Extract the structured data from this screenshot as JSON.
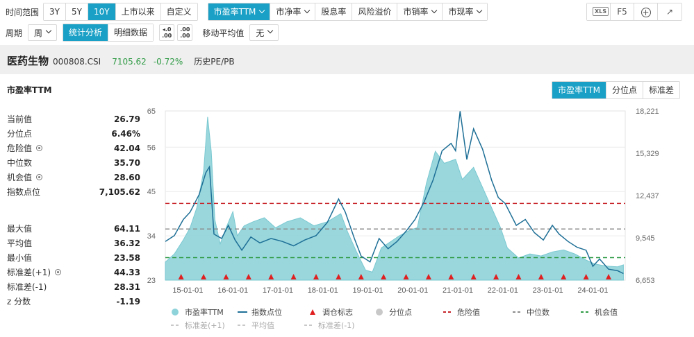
{
  "toolbar": {
    "time_range_label": "时间范围",
    "time_ranges": [
      "3Y",
      "5Y",
      "10Y",
      "上市以来",
      "自定义"
    ],
    "time_range_active": "10Y",
    "metrics": [
      "市盈率TTM",
      "市净率",
      "股息率",
      "风险溢价",
      "市销率",
      "市现率"
    ],
    "metric_active": "市盈率TTM",
    "right_buttons": [
      "XLS",
      "F5",
      "+",
      "↗"
    ]
  },
  "row2": {
    "period_label": "周期",
    "period_value": "周",
    "tabs": [
      "统计分析",
      "明细数据"
    ],
    "tab_active": "统计分析",
    "decimal_icons": [
      ".00",
      ".00"
    ],
    "ma_label": "移动平均值",
    "ma_value": "无"
  },
  "index_bar": {
    "name": "医药生物",
    "code": "000808.CSI",
    "price": "7105.62",
    "change": "-0.72%",
    "hist_label": "历史PE/PB",
    "change_color": "#2e9a44"
  },
  "panel": {
    "title": "市盈率TTM",
    "view_tabs": [
      "市盈率TTM",
      "分位点",
      "标准差"
    ],
    "view_active": "市盈率TTM"
  },
  "stats_top": [
    {
      "label": "当前值",
      "value": "26.79",
      "gear": false
    },
    {
      "label": "分位点",
      "value": "6.46%",
      "gear": false
    },
    {
      "label": "危险值",
      "value": "42.04",
      "gear": true
    },
    {
      "label": "中位数",
      "value": "35.70",
      "gear": false
    },
    {
      "label": "机会值",
      "value": "28.60",
      "gear": true
    },
    {
      "label": "指数点位",
      "value": "7,105.62",
      "gear": false
    }
  ],
  "stats_bottom": [
    {
      "label": "最大值",
      "value": "64.11",
      "gear": false
    },
    {
      "label": "平均值",
      "value": "36.32",
      "gear": false
    },
    {
      "label": "最小值",
      "value": "23.58",
      "gear": false
    },
    {
      "label": "标准差(+1)",
      "value": "44.33",
      "gear": true
    },
    {
      "label": "标准差(-1)",
      "value": "28.31",
      "gear": false
    },
    {
      "label": "z 分数",
      "value": "-1.19",
      "gear": false
    }
  ],
  "legend": {
    "row1": [
      "市盈率TTM",
      "指数点位",
      "调仓标志",
      "分位点",
      "危险值",
      "中位数",
      "机会值"
    ],
    "row2": [
      "标准差(+1)",
      "平均值",
      "标准差(-1)"
    ]
  },
  "colors": {
    "accent": "#1aa0c6",
    "area": "#8fd3da",
    "area_line": "#6cc3cc",
    "index_line": "#1e6f96",
    "danger": "#c8262b",
    "median": "#8c8c8c",
    "opportunity": "#2e9a44",
    "marker": "#e02020"
  },
  "chart_data": {
    "type": "line",
    "x_ticks": [
      "15-01-01",
      "16-01-01",
      "17-01-01",
      "18-01-01",
      "19-01-01",
      "20-01-01",
      "21-01-01",
      "22-01-01",
      "23-01-01",
      "24-01-01"
    ],
    "y_left_ticks": [
      "65",
      "56",
      "45",
      "34",
      "23"
    ],
    "y_left_lim": [
      23,
      65
    ],
    "y_right_ticks": [
      "18,221",
      "15,329",
      "12,437",
      "9,545",
      "6,653"
    ],
    "y_right_lim": [
      6653,
      18221
    ],
    "reference_lines": {
      "danger": 42.04,
      "median": 35.7,
      "opportunity": 28.6
    },
    "pe_series": {
      "name": "市盈率TTM",
      "points": [
        [
          2014.5,
          27.5
        ],
        [
          2014.7,
          29.5
        ],
        [
          2014.9,
          33.0
        ],
        [
          2015.05,
          36.0
        ],
        [
          2015.2,
          41.0
        ],
        [
          2015.35,
          50.0
        ],
        [
          2015.44,
          63.5
        ],
        [
          2015.52,
          55.0
        ],
        [
          2015.6,
          38.0
        ],
        [
          2015.72,
          32.0
        ],
        [
          2015.85,
          36.0
        ],
        [
          2016.0,
          40.0
        ],
        [
          2016.1,
          34.0
        ],
        [
          2016.25,
          36.5
        ],
        [
          2016.45,
          37.5
        ],
        [
          2016.7,
          38.5
        ],
        [
          2016.95,
          36.0
        ],
        [
          2017.2,
          37.5
        ],
        [
          2017.5,
          38.5
        ],
        [
          2017.8,
          36.5
        ],
        [
          2018.1,
          37.5
        ],
        [
          2018.4,
          39.5
        ],
        [
          2018.55,
          35.0
        ],
        [
          2018.75,
          30.0
        ],
        [
          2018.95,
          25.5
        ],
        [
          2019.1,
          25.0
        ],
        [
          2019.3,
          31.0
        ],
        [
          2019.5,
          32.5
        ],
        [
          2019.7,
          34.0
        ],
        [
          2019.95,
          35.5
        ],
        [
          2020.1,
          36.0
        ],
        [
          2020.3,
          47.0
        ],
        [
          2020.5,
          55.0
        ],
        [
          2020.7,
          52.0
        ],
        [
          2020.95,
          53.0
        ],
        [
          2021.1,
          48.0
        ],
        [
          2021.35,
          51.0
        ],
        [
          2021.55,
          46.0
        ],
        [
          2021.75,
          41.0
        ],
        [
          2021.95,
          36.0
        ],
        [
          2022.1,
          31.0
        ],
        [
          2022.35,
          28.5
        ],
        [
          2022.6,
          29.5
        ],
        [
          2022.85,
          29.0
        ],
        [
          2023.1,
          30.0
        ],
        [
          2023.35,
          30.5
        ],
        [
          2023.6,
          29.5
        ],
        [
          2023.85,
          28.0
        ],
        [
          2024.05,
          27.0
        ],
        [
          2024.3,
          26.5
        ],
        [
          2024.55,
          26.3
        ],
        [
          2024.68,
          26.79
        ]
      ]
    },
    "index_series": {
      "name": "指数点位",
      "points": [
        [
          2014.5,
          9300
        ],
        [
          2014.7,
          9700
        ],
        [
          2014.9,
          10800
        ],
        [
          2015.05,
          11300
        ],
        [
          2015.25,
          12500
        ],
        [
          2015.4,
          14000
        ],
        [
          2015.48,
          14400
        ],
        [
          2015.58,
          9800
        ],
        [
          2015.75,
          9500
        ],
        [
          2015.9,
          10400
        ],
        [
          2016.05,
          9400
        ],
        [
          2016.2,
          8700
        ],
        [
          2016.4,
          9600
        ],
        [
          2016.6,
          9200
        ],
        [
          2016.85,
          9500
        ],
        [
          2017.1,
          9300
        ],
        [
          2017.35,
          9000
        ],
        [
          2017.6,
          9400
        ],
        [
          2017.85,
          9700
        ],
        [
          2018.1,
          10600
        ],
        [
          2018.35,
          12200
        ],
        [
          2018.5,
          11300
        ],
        [
          2018.7,
          9500
        ],
        [
          2018.85,
          8300
        ],
        [
          2019.05,
          7900
        ],
        [
          2019.25,
          9500
        ],
        [
          2019.45,
          8800
        ],
        [
          2019.65,
          9300
        ],
        [
          2019.85,
          10000
        ],
        [
          2020.05,
          10800
        ],
        [
          2020.25,
          12000
        ],
        [
          2020.45,
          13500
        ],
        [
          2020.65,
          15500
        ],
        [
          2020.85,
          16000
        ],
        [
          2020.95,
          15500
        ],
        [
          2021.05,
          18200
        ],
        [
          2021.2,
          14900
        ],
        [
          2021.35,
          17000
        ],
        [
          2021.55,
          15600
        ],
        [
          2021.75,
          13500
        ],
        [
          2021.9,
          12300
        ],
        [
          2022.05,
          11900
        ],
        [
          2022.3,
          10400
        ],
        [
          2022.5,
          10800
        ],
        [
          2022.7,
          9900
        ],
        [
          2022.9,
          9400
        ],
        [
          2023.1,
          10400
        ],
        [
          2023.25,
          9800
        ],
        [
          2023.45,
          9300
        ],
        [
          2023.65,
          8900
        ],
        [
          2023.85,
          8700
        ],
        [
          2024.0,
          7600
        ],
        [
          2024.15,
          8100
        ],
        [
          2024.35,
          7400
        ],
        [
          2024.55,
          7300
        ],
        [
          2024.68,
          7105.62
        ]
      ]
    },
    "rebalance_markers": [
      2014.85,
      2015.35,
      2015.85,
      2016.35,
      2016.85,
      2017.35,
      2017.85,
      2018.35,
      2018.85,
      2019.35,
      2019.85,
      2020.35,
      2020.85,
      2021.35,
      2021.85,
      2022.35,
      2022.85,
      2023.35,
      2023.85,
      2024.35
    ]
  }
}
